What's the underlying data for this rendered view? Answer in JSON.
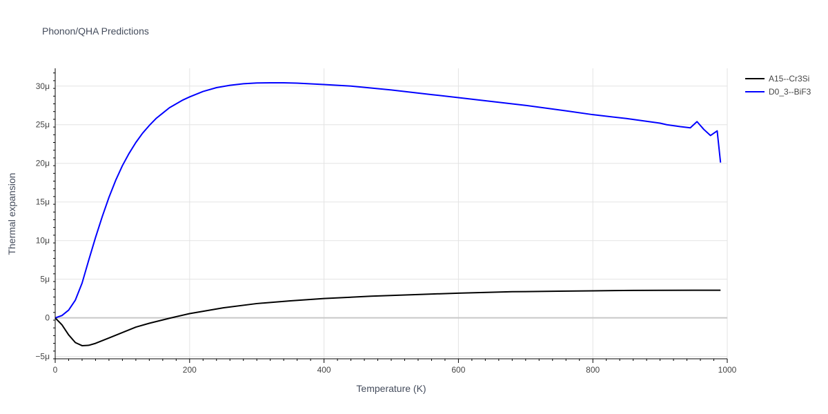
{
  "chart_data": {
    "type": "line",
    "title": "Phonon/QHA Predictions",
    "xlabel": "Temperature (K)",
    "ylabel": "Thermal expansion",
    "xlim": [
      0,
      1000
    ],
    "ylim": [
      -5.3e-06,
      3.23e-05
    ],
    "x_ticks": [
      0,
      200,
      400,
      600,
      800,
      1000
    ],
    "x_tick_labels": [
      "0",
      "200",
      "400",
      "600",
      "800",
      "1000"
    ],
    "y_ticks": [
      -5e-06,
      0,
      5e-06,
      1e-05,
      1.5e-05,
      2e-05,
      2.5e-05,
      3e-05
    ],
    "y_tick_labels": [
      "−5μ",
      "0",
      "5μ",
      "10μ",
      "15μ",
      "20μ",
      "25μ",
      "30μ"
    ],
    "grid": true,
    "legend_position": "top-right",
    "series": [
      {
        "name": "A15--Cr3Si",
        "color": "#000000",
        "x": [
          0,
          10,
          20,
          30,
          40,
          50,
          60,
          80,
          100,
          120,
          140,
          170,
          200,
          250,
          300,
          350,
          400,
          470,
          550,
          600,
          680,
          750,
          800,
          860,
          900,
          950,
          990
        ],
        "y": [
          0,
          -9e-07,
          -2.2e-06,
          -3.2e-06,
          -3.6e-06,
          -3.55e-06,
          -3.3e-06,
          -2.6e-06,
          -1.9e-06,
          -1.2e-06,
          -7e-07,
          -5e-08,
          5.5e-07,
          1.3e-06,
          1.85e-06,
          2.2e-06,
          2.5e-06,
          2.8e-06,
          3.05e-06,
          3.2e-06,
          3.38e-06,
          3.45e-06,
          3.5e-06,
          3.55e-06,
          3.56e-06,
          3.57e-06,
          3.58e-06
        ]
      },
      {
        "name": "D0_3--BiF3",
        "color": "#0000ff",
        "x": [
          0,
          10,
          20,
          30,
          40,
          50,
          60,
          70,
          80,
          90,
          100,
          110,
          120,
          130,
          140,
          150,
          160,
          170,
          180,
          190,
          200,
          220,
          240,
          260,
          280,
          300,
          320,
          340,
          360,
          400,
          440,
          500,
          560,
          600,
          650,
          700,
          760,
          800,
          850,
          900,
          910,
          930,
          945,
          955,
          965,
          975,
          985,
          990
        ],
        "y": [
          0,
          3e-07,
          1e-06,
          2.3e-06,
          4.5e-06,
          7.5e-06,
          1.04e-05,
          1.31e-05,
          1.56e-05,
          1.78e-05,
          1.97e-05,
          2.13e-05,
          2.27e-05,
          2.39e-05,
          2.49e-05,
          2.58e-05,
          2.65e-05,
          2.72e-05,
          2.77e-05,
          2.82e-05,
          2.86e-05,
          2.93e-05,
          2.98e-05,
          3.01e-05,
          3.03e-05,
          3.04e-05,
          3.043e-05,
          3.042e-05,
          3.038e-05,
          3.02e-05,
          3e-05,
          2.95e-05,
          2.89e-05,
          2.85e-05,
          2.8e-05,
          2.75e-05,
          2.68e-05,
          2.63e-05,
          2.58e-05,
          2.52e-05,
          2.5e-05,
          2.475e-05,
          2.46e-05,
          2.54e-05,
          2.44e-05,
          2.36e-05,
          2.42e-05,
          2.01e-05
        ]
      }
    ]
  }
}
